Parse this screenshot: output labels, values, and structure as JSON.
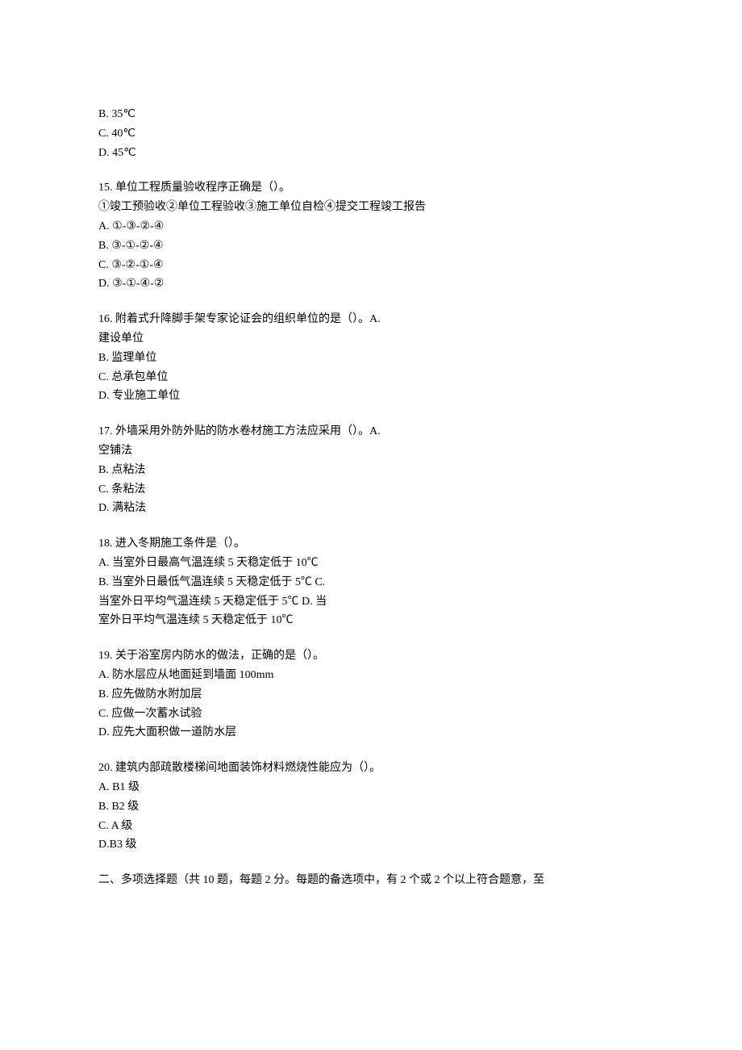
{
  "q14_partial": {
    "option_b": "B. 35℃",
    "option_c": "C. 40℃",
    "option_d": "D. 45℃"
  },
  "q15": {
    "question": "15. 单位工程质量验收程序正确是（）。",
    "statements": "①竣工预验收②单位工程验收③施工单位自检④提交工程竣工报告",
    "option_a": "A. ①-③-②-④",
    "option_b": "B. ③-①-②-④",
    "option_c": "C. ③-②-①-④",
    "option_d": "D. ③-①-④-②"
  },
  "q16": {
    "question": "16. 附着式升降脚手架专家论证会的组织单位的是（）。A.",
    "continuation": "建设单位",
    "option_b": "B. 监理单位",
    "option_c": "C. 总承包单位",
    "option_d": "D. 专业施工单位"
  },
  "q17": {
    "question": "17. 外墙采用外防外贴的防水卷材施工方法应采用（）。A.",
    "continuation": "空铺法",
    "option_b": "B. 点粘法",
    "option_c": "C. 条粘法",
    "option_d": "D. 满粘法"
  },
  "q18": {
    "question": "18. 进入冬期施工条件是（）。",
    "option_a": "A. 当室外日最高气温连续 5 天稳定低于 10℃",
    "option_b": "B. 当室外日最低气温连续 5 天稳定低于 5℃ C.",
    "option_c_cont": "当室外日平均气温连续 5 天稳定低于 5℃ D. 当",
    "option_d_cont": "室外日平均气温连续 5 天稳定低于 10℃"
  },
  "q19": {
    "question": "19. 关于浴室房内防水的做法，正确的是（）。",
    "option_a": "A. 防水层应从地面延到墙面 100mm",
    "option_b": "B. 应先做防水附加层",
    "option_c": "C. 应做一次蓄水试验",
    "option_d": "D. 应先大面积做一道防水层"
  },
  "q20": {
    "question": "20. 建筑内部疏散楼梯间地面装饰材料燃烧性能应为（）。",
    "option_a": "A. B1 级",
    "option_b": "B. B2 级",
    "option_c": "C. A 级",
    "option_d": "D.B3 级"
  },
  "section2": {
    "header": "二、多项选择题（共 10 题，每题 2 分。每题的备选项中，有 2 个或 2 个以上符合题意，至"
  }
}
